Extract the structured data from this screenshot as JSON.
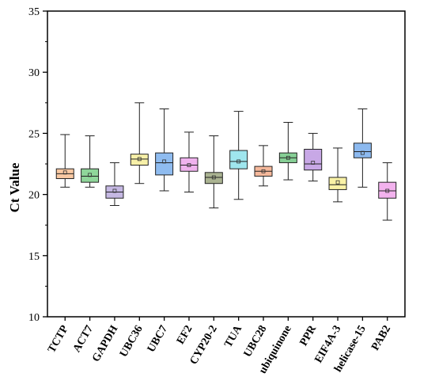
{
  "chart_data": {
    "type": "box",
    "title": "",
    "xlabel": "",
    "ylabel": "Ct Value",
    "ylim": [
      10,
      35
    ],
    "yticks": [
      10,
      15,
      20,
      25,
      30,
      35
    ],
    "grid": false,
    "legend": "none",
    "categories": [
      "TCTP",
      "ACT7",
      "GAPDH",
      "UBC36",
      "UBC7",
      "EF2",
      "CYP20-2",
      "TUA",
      "UBC28",
      "ubiquinone",
      "PPR",
      "EIF4A-3",
      "helicase-15",
      "PAB2"
    ],
    "boxes": [
      {
        "category": "TCTP",
        "min": 20.6,
        "q1": 21.3,
        "median": 21.7,
        "q3": 22.1,
        "max": 24.9,
        "mean": 21.8,
        "color": "#f9c9a3"
      },
      {
        "category": "ACT7",
        "min": 20.6,
        "q1": 21.0,
        "median": 21.5,
        "q3": 22.1,
        "max": 24.8,
        "mean": 21.6,
        "color": "#8fd69a"
      },
      {
        "category": "GAPDH",
        "min": 19.1,
        "q1": 19.7,
        "median": 20.2,
        "q3": 20.7,
        "max": 22.6,
        "mean": 20.3,
        "color": "#c5b8e3"
      },
      {
        "category": "UBC36",
        "min": 20.9,
        "q1": 22.4,
        "median": 22.9,
        "q3": 23.3,
        "max": 27.5,
        "mean": 22.9,
        "color": "#f7f0a8"
      },
      {
        "category": "UBC7",
        "min": 20.3,
        "q1": 21.6,
        "median": 22.6,
        "q3": 23.4,
        "max": 27.0,
        "mean": 22.7,
        "color": "#8fbcf0"
      },
      {
        "category": "EF2",
        "min": 20.2,
        "q1": 21.9,
        "median": 22.4,
        "q3": 23.0,
        "max": 25.1,
        "mean": 22.4,
        "color": "#f0b2ee"
      },
      {
        "category": "CYP20-2",
        "min": 18.9,
        "q1": 20.9,
        "median": 21.4,
        "q3": 21.8,
        "max": 24.8,
        "mean": 21.4,
        "color": "#aab391"
      },
      {
        "category": "TUA",
        "min": 19.6,
        "q1": 22.1,
        "median": 22.7,
        "q3": 23.6,
        "max": 26.8,
        "mean": 22.7,
        "color": "#9fe6ee"
      },
      {
        "category": "UBC28",
        "min": 20.7,
        "q1": 21.5,
        "median": 21.9,
        "q3": 22.3,
        "max": 24.0,
        "mean": 21.9,
        "color": "#f6b99c"
      },
      {
        "category": "ubiquinone",
        "min": 21.2,
        "q1": 22.6,
        "median": 23.0,
        "q3": 23.4,
        "max": 25.9,
        "mean": 23.0,
        "color": "#86cf95"
      },
      {
        "category": "PPR",
        "min": 21.1,
        "q1": 22.0,
        "median": 22.5,
        "q3": 23.7,
        "max": 25.0,
        "mean": 22.6,
        "color": "#c8a8e6"
      },
      {
        "category": "EIF4A-3",
        "min": 19.4,
        "q1": 20.4,
        "median": 20.8,
        "q3": 21.4,
        "max": 23.8,
        "mean": 21.0,
        "color": "#f9f2a6"
      },
      {
        "category": "helicase-15",
        "min": 20.6,
        "q1": 23.0,
        "median": 23.5,
        "q3": 24.2,
        "max": 27.0,
        "mean": 23.4,
        "color": "#8cb9ef"
      },
      {
        "category": "PAB2",
        "min": 17.9,
        "q1": 19.7,
        "median": 20.3,
        "q3": 21.0,
        "max": 22.6,
        "mean": 20.3,
        "color": "#f3b2ee"
      }
    ]
  }
}
